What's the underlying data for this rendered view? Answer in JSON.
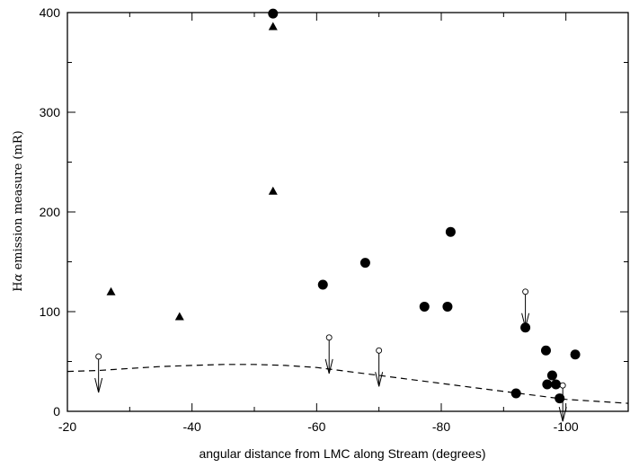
{
  "chart_data": {
    "type": "scatter",
    "title": "",
    "xlabel": "angular distance from LMC along Stream (degrees)",
    "ylabel_prefix": "H",
    "ylabel_symbol": "α",
    "ylabel_rest": " emission measure (mR)",
    "xlim": [
      -20,
      -110
    ],
    "ylim": [
      0,
      400
    ],
    "x_ticks": [
      -20,
      -40,
      -60,
      -80,
      -100
    ],
    "x_tick_labels": [
      "-20",
      "-40",
      "-60",
      "-80",
      "-100"
    ],
    "y_ticks": [
      0,
      100,
      200,
      300,
      400
    ],
    "y_tick_labels": [
      "0",
      "100",
      "200",
      "300",
      "400"
    ],
    "grid": false,
    "series": [
      {
        "marker": "triangle",
        "points": [
          {
            "x": -27,
            "y": 120
          },
          {
            "x": -38,
            "y": 95
          },
          {
            "x": -53,
            "y": 386
          },
          {
            "x": -53,
            "y": 221
          }
        ]
      },
      {
        "marker": "filled-circle",
        "points": [
          {
            "x": -53,
            "y": 399
          },
          {
            "x": -61,
            "y": 127
          },
          {
            "x": -67.8,
            "y": 149
          },
          {
            "x": -77.3,
            "y": 105
          },
          {
            "x": -81,
            "y": 105
          },
          {
            "x": -81.5,
            "y": 180
          },
          {
            "x": -92,
            "y": 18
          },
          {
            "x": -93.5,
            "y": 84
          },
          {
            "x": -96.8,
            "y": 61
          },
          {
            "x": -97,
            "y": 27
          },
          {
            "x": -97.8,
            "y": 36
          },
          {
            "x": -98.4,
            "y": 27
          },
          {
            "x": -99,
            "y": 13
          },
          {
            "x": -101.5,
            "y": 57
          }
        ]
      },
      {
        "marker": "upper-limit",
        "points": [
          {
            "x": -25,
            "y": 55
          },
          {
            "x": -62,
            "y": 74
          },
          {
            "x": -70,
            "y": 61
          },
          {
            "x": -93.5,
            "y": 120
          },
          {
            "x": -99.5,
            "y": 26
          }
        ]
      },
      {
        "marker": "dashed-curve",
        "points": [
          {
            "x": -20,
            "y": 40
          },
          {
            "x": -25,
            "y": 41
          },
          {
            "x": -30,
            "y": 43
          },
          {
            "x": -35,
            "y": 45
          },
          {
            "x": -40,
            "y": 46
          },
          {
            "x": -45,
            "y": 47
          },
          {
            "x": -50,
            "y": 47
          },
          {
            "x": -55,
            "y": 46
          },
          {
            "x": -60,
            "y": 44
          },
          {
            "x": -65,
            "y": 40
          },
          {
            "x": -70,
            "y": 36
          },
          {
            "x": -75,
            "y": 32
          },
          {
            "x": -80,
            "y": 28
          },
          {
            "x": -85,
            "y": 24
          },
          {
            "x": -90,
            "y": 20
          },
          {
            "x": -95,
            "y": 16
          },
          {
            "x": -100,
            "y": 12
          },
          {
            "x": -105,
            "y": 10
          },
          {
            "x": -110,
            "y": 8
          }
        ]
      }
    ]
  }
}
